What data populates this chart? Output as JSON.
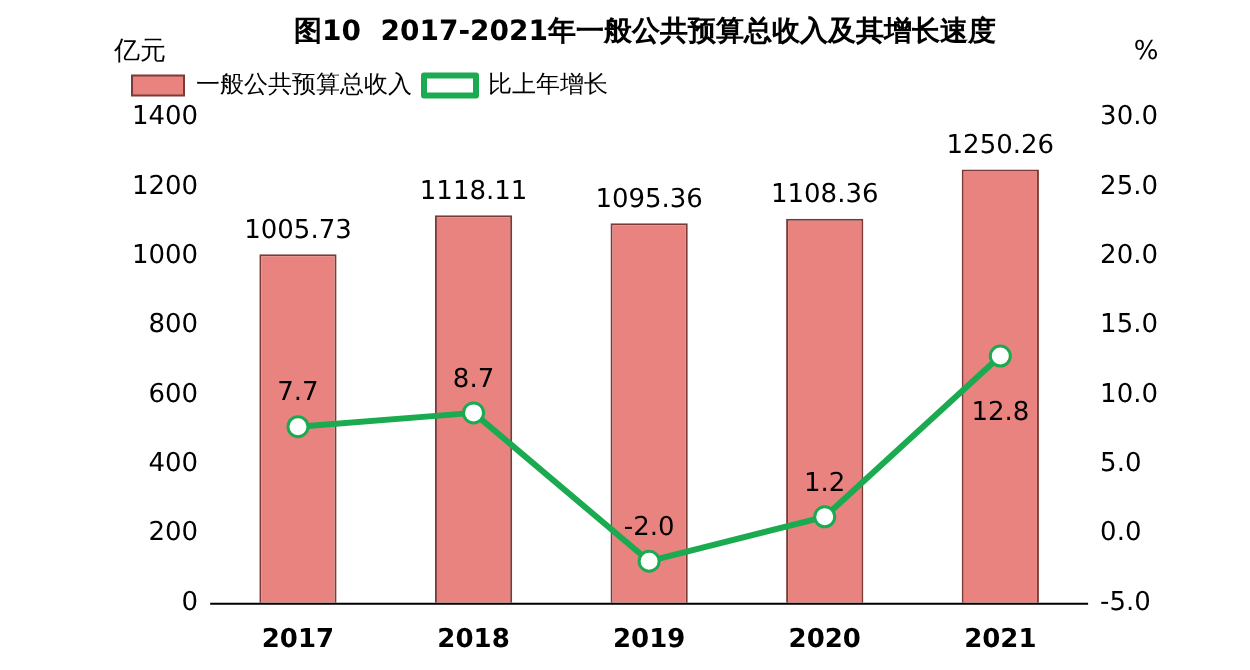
{
  "chart_data": {
    "type": "bar",
    "title": "图10  2017-2021年一般公共预算总收入及其增长速度",
    "ylabel": "亿元",
    "y2label": "%",
    "categories": [
      "2017",
      "2018",
      "2019",
      "2020",
      "2021"
    ],
    "series": [
      {
        "name": "一般公共预算总收入",
        "color": "#e8837f",
        "values": [
          1005.73,
          1118.11,
          1095.36,
          1108.36,
          1250.26
        ],
        "value_labels": [
          "1005.73",
          "1118.11",
          "1095.36",
          "1108.36",
          "1250.26"
        ]
      },
      {
        "name": "比上年增长",
        "type": "line",
        "axis": "y2",
        "color": "#1aaa50",
        "values": [
          7.7,
          8.7,
          -2.0,
          1.2,
          12.8
        ],
        "value_labels": [
          "7.7",
          "8.7",
          "-2.0",
          "1.2",
          "12.8"
        ]
      }
    ],
    "ylim": [
      0,
      1400
    ],
    "yticks": [
      0,
      200,
      400,
      600,
      800,
      1000,
      1200,
      1400
    ],
    "y2lim": [
      -5,
      30
    ],
    "y2ticks": [
      {
        "value": -5,
        "label": "-5.0"
      },
      {
        "value": 0,
        "label": "0.0"
      },
      {
        "value": 5,
        "label": "5.0"
      },
      {
        "value": 10,
        "label": "10.0"
      },
      {
        "value": 15,
        "label": "15.0"
      },
      {
        "value": 20,
        "label": "20.0"
      },
      {
        "value": 25,
        "label": "25.0"
      },
      {
        "value": 30,
        "label": "30.0"
      }
    ],
    "legend": "top left",
    "marker": "circle",
    "grid": false
  }
}
